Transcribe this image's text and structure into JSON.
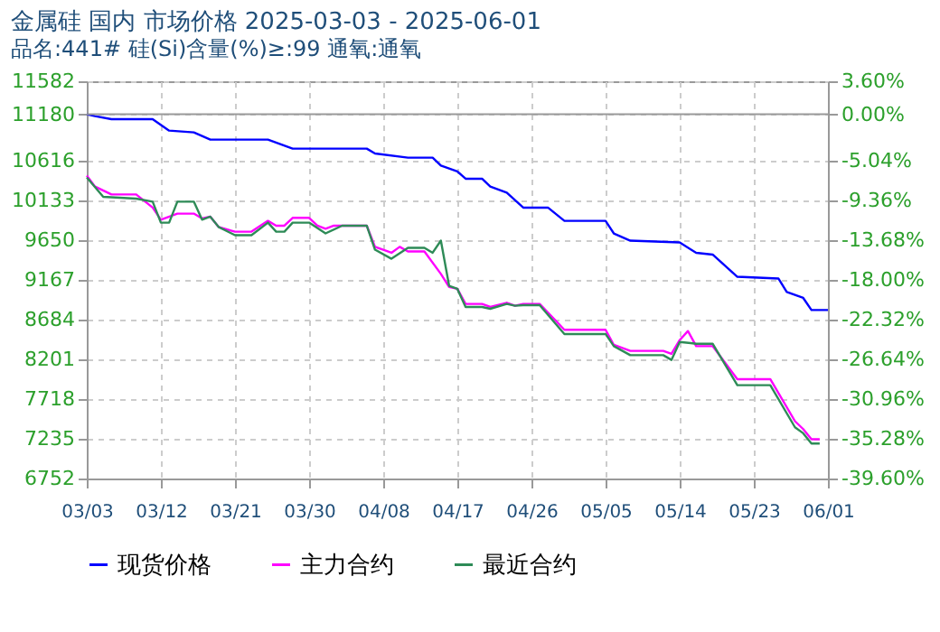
{
  "chart_data": {
    "type": "line",
    "title": "金属硅 国内 市场价格 2025-03-03 - 2025-06-01",
    "subtitle": "品名:441# 硅(Si)含量(%)≥:99 通氧:通氧",
    "series": [
      {
        "name": "现货价格",
        "color": "#0000ff",
        "x": [
          "2025-03-03",
          "2025-03-04",
          "2025-03-06",
          "2025-03-11",
          "2025-03-13",
          "2025-03-16",
          "2025-03-18",
          "2025-03-25",
          "2025-03-28",
          "2025-04-06",
          "2025-04-07",
          "2025-04-11",
          "2025-04-14",
          "2025-04-15",
          "2025-04-17",
          "2025-04-18",
          "2025-04-20",
          "2025-04-21",
          "2025-04-23",
          "2025-04-25",
          "2025-04-28",
          "2025-04-30",
          "2025-05-05",
          "2025-05-06",
          "2025-05-08",
          "2025-05-14",
          "2025-05-16",
          "2025-05-18",
          "2025-05-21",
          "2025-05-26",
          "2025-05-27",
          "2025-05-29",
          "2025-05-30",
          "2025-06-01"
        ],
        "values": [
          11180,
          11158,
          11121,
          11121,
          10982,
          10960,
          10873,
          10873,
          10763,
          10763,
          10704,
          10653,
          10653,
          10557,
          10485,
          10397,
          10397,
          10302,
          10228,
          10046,
          10046,
          9885,
          9885,
          9732,
          9644,
          9622,
          9497,
          9475,
          9205,
          9183,
          9021,
          8948,
          8801,
          8801
        ]
      },
      {
        "name": "主力合约",
        "color": "#ff00ff",
        "x": [
          "2025-03-03",
          "2025-03-04",
          "2025-03-06",
          "2025-03-09",
          "2025-03-11",
          "2025-03-12",
          "2025-03-14",
          "2025-03-16",
          "2025-03-17",
          "2025-03-18",
          "2025-03-19",
          "2025-03-21",
          "2025-03-23",
          "2025-03-25",
          "2025-03-26",
          "2025-03-27",
          "2025-03-28",
          "2025-03-30",
          "2025-03-31",
          "2025-04-01",
          "2025-04-02",
          "2025-04-06",
          "2025-04-07",
          "2025-04-09",
          "2025-04-10",
          "2025-04-11",
          "2025-04-13",
          "2025-04-15",
          "2025-04-16",
          "2025-04-17",
          "2025-04-18",
          "2025-04-20",
          "2025-04-21",
          "2025-04-23",
          "2025-04-24",
          "2025-04-25",
          "2025-04-27",
          "2025-04-30",
          "2025-05-05",
          "2025-05-06",
          "2025-05-08",
          "2025-05-12",
          "2025-05-13",
          "2025-05-14",
          "2025-05-15",
          "2025-05-16",
          "2025-05-18",
          "2025-05-21",
          "2025-05-25",
          "2025-05-28",
          "2025-05-29",
          "2025-05-30",
          "2025-05-31"
        ],
        "values": [
          10434,
          10302,
          10206,
          10206,
          10046,
          9899,
          9973,
          9973,
          9914,
          9936,
          9811,
          9753,
          9753,
          9885,
          9826,
          9826,
          9921,
          9921,
          9826,
          9789,
          9826,
          9826,
          9569,
          9497,
          9569,
          9512,
          9512,
          9240,
          9080,
          9058,
          8875,
          8875,
          8838,
          8889,
          8853,
          8875,
          8875,
          8560,
          8560,
          8377,
          8304,
          8304,
          8267,
          8435,
          8545,
          8362,
          8362,
          7960,
          7960,
          7449,
          7353,
          7229,
          7229
        ]
      },
      {
        "name": "最近合约",
        "color": "#2e8b57",
        "x": [
          "2025-03-03",
          "2025-03-05",
          "2025-03-09",
          "2025-03-11",
          "2025-03-12",
          "2025-03-13",
          "2025-03-14",
          "2025-03-16",
          "2025-03-17",
          "2025-03-18",
          "2025-03-19",
          "2025-03-21",
          "2025-03-23",
          "2025-03-25",
          "2025-03-26",
          "2025-03-27",
          "2025-03-28",
          "2025-03-30",
          "2025-04-01",
          "2025-04-03",
          "2025-04-06",
          "2025-04-07",
          "2025-04-09",
          "2025-04-11",
          "2025-04-13",
          "2025-04-14",
          "2025-04-15",
          "2025-04-16",
          "2025-04-17",
          "2025-04-18",
          "2025-04-20",
          "2025-04-21",
          "2025-04-23",
          "2025-04-24",
          "2025-04-25",
          "2025-04-27",
          "2025-04-30",
          "2025-05-05",
          "2025-05-06",
          "2025-05-08",
          "2025-05-12",
          "2025-05-13",
          "2025-05-14",
          "2025-05-16",
          "2025-05-18",
          "2025-05-21",
          "2025-05-25",
          "2025-05-28",
          "2025-05-29",
          "2025-05-30",
          "2025-05-31"
        ],
        "values": [
          10412,
          10177,
          10155,
          10118,
          9863,
          9863,
          10118,
          10118,
          9899,
          9936,
          9811,
          9710,
          9710,
          9863,
          9753,
          9753,
          9863,
          9863,
          9732,
          9826,
          9826,
          9534,
          9424,
          9556,
          9556,
          9497,
          9644,
          9095,
          9058,
          8838,
          8838,
          8816,
          8875,
          8853,
          8860,
          8860,
          8509,
          8509,
          8362,
          8252,
          8252,
          8194,
          8413,
          8391,
          8391,
          7887,
          7887,
          7375,
          7302,
          7178,
          7178
        ]
      }
    ],
    "xlim": [
      "2025-03-03",
      "2025-06-01"
    ],
    "xticks": [
      {
        "value": "2025-03-03",
        "label": "03/03"
      },
      {
        "value": "2025-03-12",
        "label": "03/12"
      },
      {
        "value": "2025-03-21",
        "label": "03/21"
      },
      {
        "value": "2025-03-30",
        "label": "03/30"
      },
      {
        "value": "2025-04-08",
        "label": "04/08"
      },
      {
        "value": "2025-04-17",
        "label": "04/17"
      },
      {
        "value": "2025-04-26",
        "label": "04/26"
      },
      {
        "value": "2025-05-05",
        "label": "05/05"
      },
      {
        "value": "2025-05-14",
        "label": "05/14"
      },
      {
        "value": "2025-05-23",
        "label": "05/23"
      },
      {
        "value": "2025-06-01",
        "label": "06/01"
      }
    ],
    "ylim": [
      6752,
      11582
    ],
    "yticks": [
      6752,
      7235,
      7718,
      8201,
      8684,
      9167,
      9650,
      10133,
      10616,
      11180,
      11582
    ],
    "y2lim": [
      -39.6,
      3.6
    ],
    "y2ticks": [
      {
        "value": -39.6,
        "label": "-39.60%"
      },
      {
        "value": -35.28,
        "label": "-35.28%"
      },
      {
        "value": -30.96,
        "label": "-30.96%"
      },
      {
        "value": -26.64,
        "label": "-26.64%"
      },
      {
        "value": -22.32,
        "label": "-22.32%"
      },
      {
        "value": -18,
        "label": "-18.00%"
      },
      {
        "value": -13.68,
        "label": "-13.68%"
      },
      {
        "value": -9.36,
        "label": "-9.36%"
      },
      {
        "value": -5.04,
        "label": "-5.04%"
      },
      {
        "value": 0,
        "label": "0.00%"
      },
      {
        "value": 3.6,
        "label": "3.60%"
      }
    ],
    "ref_lines": [
      {
        "axis": "y",
        "value": 11180,
        "color": "#999999"
      }
    ],
    "grid": true,
    "legend": "bottom",
    "line_style": "solid"
  }
}
